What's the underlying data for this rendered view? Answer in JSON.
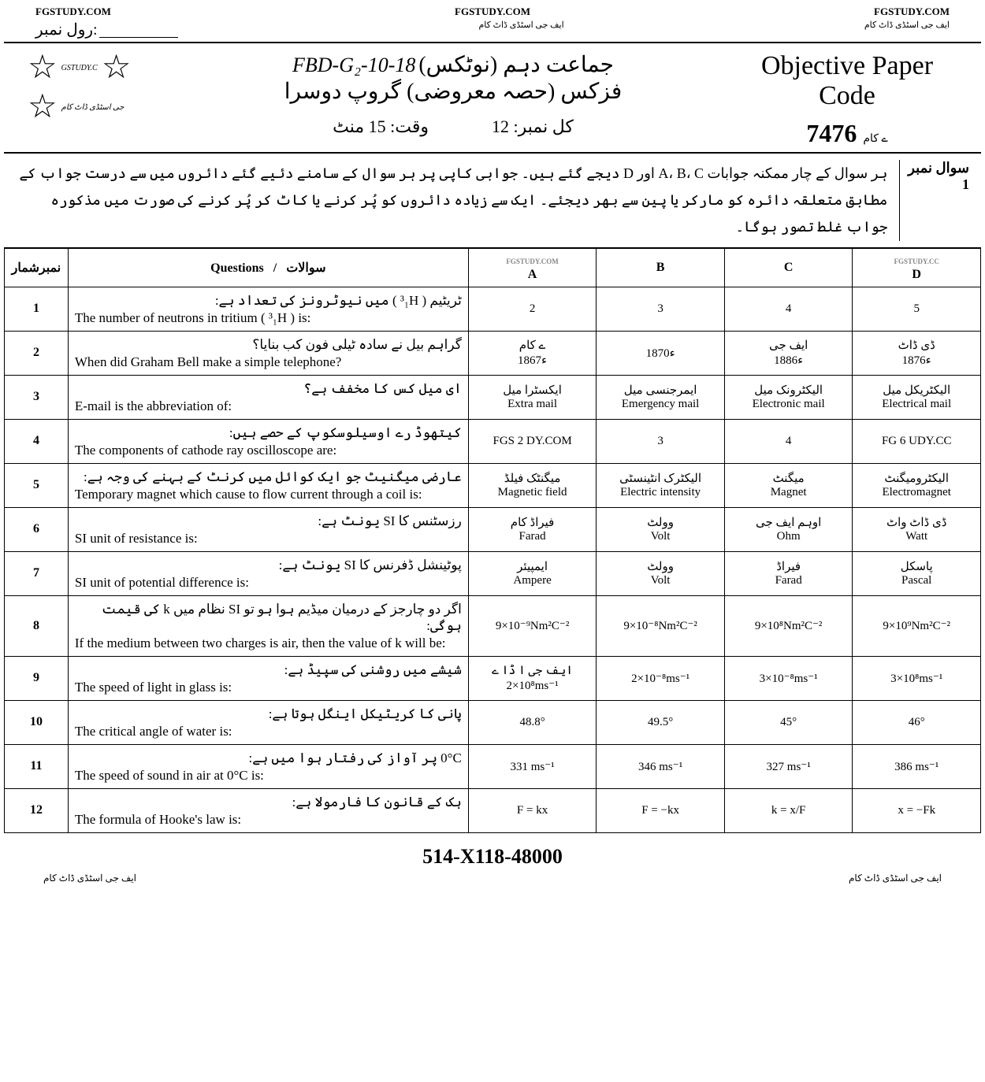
{
  "header": {
    "site": "FGSTUDY.COM",
    "urdu_tag": "ایف جی اسٹڈی ڈاٹ کام",
    "roll_label": "رول نمبر:",
    "roll_blank_text": "ایف جی اسٹڈی ڈاٹ کام"
  },
  "stars": {
    "label1": "GSTUDY.C",
    "label2": "جی اسٹڈی ڈاٹ کام"
  },
  "title": {
    "handwritten": "FBD-G₂-10-18",
    "urdu_exam": "جماعت دہم (نوٹکس)",
    "urdu_subject": "فزکس (حصہ معروضی)   گروپ دوسرا",
    "time_label": "وقت: 15 منٹ",
    "total_label": "کل نمبر: 12",
    "obj_line1": "Objective Paper",
    "obj_line2": "Code",
    "code_num": "7476",
    "code_suffix": "ے کام"
  },
  "instructions": {
    "label_line1": "سوال نمبر",
    "label_line2": "1",
    "text": "ہر سوال کے چار ممکنہ جوابات A، B، C اور D دیجے گئے ہیں۔ جوابی کاپی پر ہر سوال کے سامنے دئیے گئے دائروں میں سے درست جواب کے مطابق متعلقہ دائرہ کو مارکر یا پین سے بھر دیجئے۔   ایک سے زیادہ دائروں کو پُر کرنے یا کاٹ کر پُر کرنے کی صورت میں مذکورہ جواب غلط تصور ہوگا۔"
  },
  "table": {
    "headers": {
      "num": "نمبرشمار",
      "q_urdu": "سوالات",
      "q_eng": "Questions",
      "a": "A",
      "b": "B",
      "c": "C",
      "d": "D"
    },
    "rows": [
      {
        "n": "1",
        "qu": "ٹریٹیم ( ³₁H ) میں نیوٹرونز کی تعداد ہے:",
        "qe": "The number of neutrons in tritium ( ³₁H ) is:",
        "a": {
          "u": "",
          "e": "2"
        },
        "b": {
          "u": "",
          "e": "3"
        },
        "c": {
          "u": "",
          "e": "4"
        },
        "d": {
          "u": "",
          "e": "5"
        }
      },
      {
        "n": "2",
        "qu": "گراہم بیل نے سادہ ٹیلی فون کب بنایا؟",
        "qe": "When did Graham Bell make a simple telephone?",
        "a": {
          "u": "ے کام",
          "e": "1867ء"
        },
        "b": {
          "u": "",
          "e": "1870ء"
        },
        "c": {
          "u": "ایف جی",
          "e": "1886ء"
        },
        "d": {
          "u": "ڈی ڈاٹ",
          "e": "1876ء"
        }
      },
      {
        "n": "3",
        "qu": "ای میل کس کا مخفف ہے؟",
        "qe": "E-mail is the abbreviation of:",
        "a": {
          "u": "ایکسٹرا میل",
          "e": "Extra mail"
        },
        "b": {
          "u": "ایمرجنسی میل",
          "e": "Emergency mail"
        },
        "c": {
          "u": "الیکٹرونک میل",
          "e": "Electronic mail"
        },
        "d": {
          "u": "الیکٹریکل میل",
          "e": "Electrical mail"
        }
      },
      {
        "n": "4",
        "qu": "کیتھوڈ رے اوسیلوسکوپ کے حصے ہیں:",
        "qe": "The components of cathode ray oscilloscope are:",
        "a": {
          "u": "",
          "e": "FGS 2 DY.COM"
        },
        "b": {
          "u": "",
          "e": "3"
        },
        "c": {
          "u": "",
          "e": "4"
        },
        "d": {
          "u": "",
          "e": "FG 6 UDY.CC"
        }
      },
      {
        "n": "5",
        "qu": "عارضی میگنیٹ جو ایک کوائل میں کرنٹ کے بہنے کی وجہ ہے:",
        "qe": "Temporary magnet which cause to flow current through a coil is:",
        "a": {
          "u": "میگنٹک فیلڈ",
          "e": "Magnetic field"
        },
        "b": {
          "u": "الیکٹرک انٹینسٹی",
          "e": "Electric intensity"
        },
        "c": {
          "u": "میگنٹ",
          "e": "Magnet"
        },
        "d": {
          "u": "الیکٹرومیگنٹ",
          "e": "Electromagnet"
        }
      },
      {
        "n": "6",
        "qu": "رزسٹنس کا SI یونٹ ہے:",
        "qe": "SI unit of resistance is:",
        "a": {
          "u": "فیراڈ کام",
          "e": "Farad"
        },
        "b": {
          "u": "وولٹ",
          "e": "Volt"
        },
        "c": {
          "u": "اوہم ایف جی",
          "e": "Ohm"
        },
        "d": {
          "u": "ڈی ڈاٹ واٹ",
          "e": "Watt"
        }
      },
      {
        "n": "7",
        "qu": "پوٹینشل ڈفرنس کا SI یونٹ ہے:",
        "qe": "SI unit of potential difference is:",
        "a": {
          "u": "ایمپیئر",
          "e": "Ampere"
        },
        "b": {
          "u": "وولٹ",
          "e": "Volt"
        },
        "c": {
          "u": "فیراڈ",
          "e": "Farad"
        },
        "d": {
          "u": "پاسکل",
          "e": "Pascal"
        }
      },
      {
        "n": "8",
        "qu": "اگر دو چارجز کے درمیان میڈیم ہوا ہو تو SI نظام میں k کی قیمت ہوگی:",
        "qe": "If the medium between two charges is air, then the value of k will be:",
        "a": {
          "u": "",
          "e": "9×10⁻⁹Nm²C⁻²"
        },
        "b": {
          "u": "",
          "e": "9×10⁻⁸Nm²C⁻²"
        },
        "c": {
          "u": "",
          "e": "9×10⁸Nm²C⁻²"
        },
        "d": {
          "u": "",
          "e": "9×10⁹Nm²C⁻²"
        }
      },
      {
        "n": "9",
        "qu": "شیشے میں روشنی کی سپیڈ ہے:",
        "qe": "The speed of light in glass is:",
        "a": {
          "u": "ایف جی ا ڈا ے",
          "e": "2×10⁸ms⁻¹"
        },
        "b": {
          "u": "",
          "e": "2×10⁻⁸ms⁻¹"
        },
        "c": {
          "u": "",
          "e": "3×10⁻⁸ms⁻¹"
        },
        "d": {
          "u": "",
          "e": "3×10⁸ms⁻¹"
        }
      },
      {
        "n": "10",
        "qu": "پانی کا کریٹیکل اینگل ہوتا ہے:",
        "qe": "The critical angle of water is:",
        "a": {
          "u": "",
          "e": "48.8°"
        },
        "b": {
          "u": "",
          "e": "49.5°"
        },
        "c": {
          "u": "",
          "e": "45°"
        },
        "d": {
          "u": "",
          "e": "46°"
        }
      },
      {
        "n": "11",
        "qu": "0°C پر آواز کی رفتار ہوا میں ہے:",
        "qe": "The speed of sound in air at 0°C is:",
        "a": {
          "u": "",
          "e": "331 ms⁻¹"
        },
        "b": {
          "u": "",
          "e": "346 ms⁻¹"
        },
        "c": {
          "u": "",
          "e": "327 ms⁻¹"
        },
        "d": {
          "u": "",
          "e": "386 ms⁻¹"
        }
      },
      {
        "n": "12",
        "qu": "ہک کے قانون کا فارمولا ہے:",
        "qe": "The formula of Hooke's law is:",
        "a": {
          "u": "",
          "e": "F = kx"
        },
        "b": {
          "u": "",
          "e": "F = −kx"
        },
        "c": {
          "u": "",
          "e": "k = x/F"
        },
        "d": {
          "u": "",
          "e": "x = −Fk"
        }
      }
    ]
  },
  "footer": {
    "code": "514-X118-48000",
    "left": "ایف جی اسٹڈی ڈاٹ کام",
    "right": "ایف جی اسٹڈی ڈاٹ کام"
  },
  "colors": {
    "text": "#000000",
    "bg": "#ffffff",
    "border": "#000000"
  }
}
